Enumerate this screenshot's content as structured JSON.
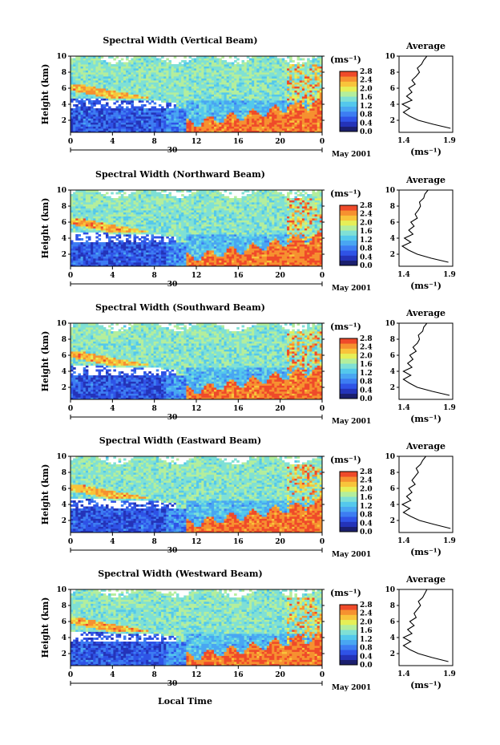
{
  "figure": {
    "xlabel": "Local Time",
    "ylabel": "Height (km)",
    "units": "(ms⁻¹)",
    "date_day": "30",
    "date_label": "May 2001",
    "avg_title": "Average",
    "avg_units": "(ms⁻¹)",
    "time_ticks": [
      "0",
      "4",
      "8",
      "12",
      "16",
      "20",
      "0"
    ],
    "height_ticks": [
      "2",
      "4",
      "6",
      "8",
      "10"
    ],
    "colorbar_ticks": [
      "0.0",
      "0.4",
      "0.8",
      "1.2",
      "1.6",
      "2.0",
      "2.4",
      "2.8"
    ],
    "colorbar_colors": [
      "#1b1f6e",
      "#2433b8",
      "#2f53e6",
      "#3d7df2",
      "#49a6f2",
      "#54c8ec",
      "#7fe0d5",
      "#b4ee9c",
      "#e6ef57",
      "#f8c43b",
      "#f69130",
      "#ef4a2a"
    ]
  },
  "chart_data": [
    {
      "type": "heatmap",
      "title": "Spectral Width (Vertical Beam)",
      "xlabel": "Local Time",
      "ylabel": "Height (km)",
      "x_range": [
        0,
        24
      ],
      "y_range": [
        0.5,
        10
      ],
      "value_range": [
        0.0,
        2.8
      ],
      "avg_profile": {
        "xlim": [
          1.4,
          1.9
        ],
        "x_ticks": [
          "1.4",
          "1.9"
        ],
        "heights": [
          1,
          1.5,
          2,
          2.5,
          3,
          3.5,
          4,
          4.5,
          5,
          5.5,
          6,
          6.5,
          7,
          7.5,
          8,
          8.5,
          9,
          9.5,
          10
        ],
        "values": [
          1.88,
          1.72,
          1.58,
          1.5,
          1.44,
          1.5,
          1.43,
          1.52,
          1.47,
          1.52,
          1.49,
          1.55,
          1.52,
          1.56,
          1.59,
          1.57,
          1.61,
          1.63,
          1.66
        ]
      }
    },
    {
      "type": "heatmap",
      "title": "Spectral Width (Northward Beam)",
      "xlabel": "Local Time",
      "ylabel": "Height (km)",
      "x_range": [
        0,
        24
      ],
      "y_range": [
        0.5,
        10
      ],
      "value_range": [
        0.0,
        2.8
      ],
      "avg_profile": {
        "xlim": [
          1.4,
          1.9
        ],
        "x_ticks": [
          "1.4",
          "1.9"
        ],
        "heights": [
          1,
          1.5,
          2,
          2.5,
          3,
          3.5,
          4,
          4.5,
          5,
          5.5,
          6,
          6.5,
          7,
          7.5,
          8,
          8.5,
          9,
          9.5,
          10
        ],
        "values": [
          1.86,
          1.7,
          1.57,
          1.49,
          1.43,
          1.51,
          1.45,
          1.53,
          1.49,
          1.54,
          1.51,
          1.57,
          1.55,
          1.58,
          1.6,
          1.59,
          1.63,
          1.64,
          1.67
        ]
      }
    },
    {
      "type": "heatmap",
      "title": "Spectral Width (Southward Beam)",
      "xlabel": "Local Time",
      "ylabel": "Height (km)",
      "x_range": [
        0,
        24
      ],
      "y_range": [
        0.5,
        10
      ],
      "value_range": [
        0.0,
        2.8
      ],
      "avg_profile": {
        "xlim": [
          1.4,
          1.9
        ],
        "x_ticks": [
          "1.4",
          "1.9"
        ],
        "heights": [
          1,
          1.5,
          2,
          2.5,
          3,
          3.5,
          4,
          4.5,
          5,
          5.5,
          6,
          6.5,
          7,
          7.5,
          8,
          8.5,
          9,
          9.5,
          10
        ],
        "values": [
          1.87,
          1.71,
          1.57,
          1.5,
          1.44,
          1.51,
          1.44,
          1.52,
          1.48,
          1.53,
          1.5,
          1.56,
          1.53,
          1.57,
          1.59,
          1.58,
          1.62,
          1.63,
          1.66
        ]
      }
    },
    {
      "type": "heatmap",
      "title": "Spectral Width (Eastward Beam)",
      "xlabel": "Local Time",
      "ylabel": "Height (km)",
      "x_range": [
        0,
        24
      ],
      "y_range": [
        0.5,
        10
      ],
      "value_range": [
        0.0,
        2.8
      ],
      "avg_profile": {
        "xlim": [
          1.4,
          1.9
        ],
        "x_ticks": [
          "1.4",
          "1.9"
        ],
        "heights": [
          1,
          1.5,
          2,
          2.5,
          3,
          3.5,
          4,
          4.5,
          5,
          5.5,
          6,
          6.5,
          7,
          7.5,
          8,
          8.5,
          9,
          9.5,
          10
        ],
        "values": [
          1.88,
          1.73,
          1.59,
          1.51,
          1.44,
          1.5,
          1.43,
          1.51,
          1.47,
          1.52,
          1.49,
          1.55,
          1.52,
          1.55,
          1.58,
          1.56,
          1.6,
          1.62,
          1.65
        ]
      }
    },
    {
      "type": "heatmap",
      "title": "Spectral Width (Westward Beam)",
      "xlabel": "Local Time",
      "ylabel": "Height (km)",
      "x_range": [
        0,
        24
      ],
      "y_range": [
        0.5,
        10
      ],
      "value_range": [
        0.0,
        2.8
      ],
      "avg_profile": {
        "xlim": [
          1.4,
          1.9
        ],
        "x_ticks": [
          "1.4",
          "1.9"
        ],
        "heights": [
          1,
          1.5,
          2,
          2.5,
          3,
          3.5,
          4,
          4.5,
          5,
          5.5,
          6,
          6.5,
          7,
          7.5,
          8,
          8.5,
          9,
          9.5,
          10
        ],
        "values": [
          1.86,
          1.71,
          1.58,
          1.5,
          1.44,
          1.51,
          1.44,
          1.52,
          1.48,
          1.54,
          1.5,
          1.56,
          1.54,
          1.57,
          1.6,
          1.58,
          1.62,
          1.64,
          1.66
        ]
      }
    }
  ]
}
